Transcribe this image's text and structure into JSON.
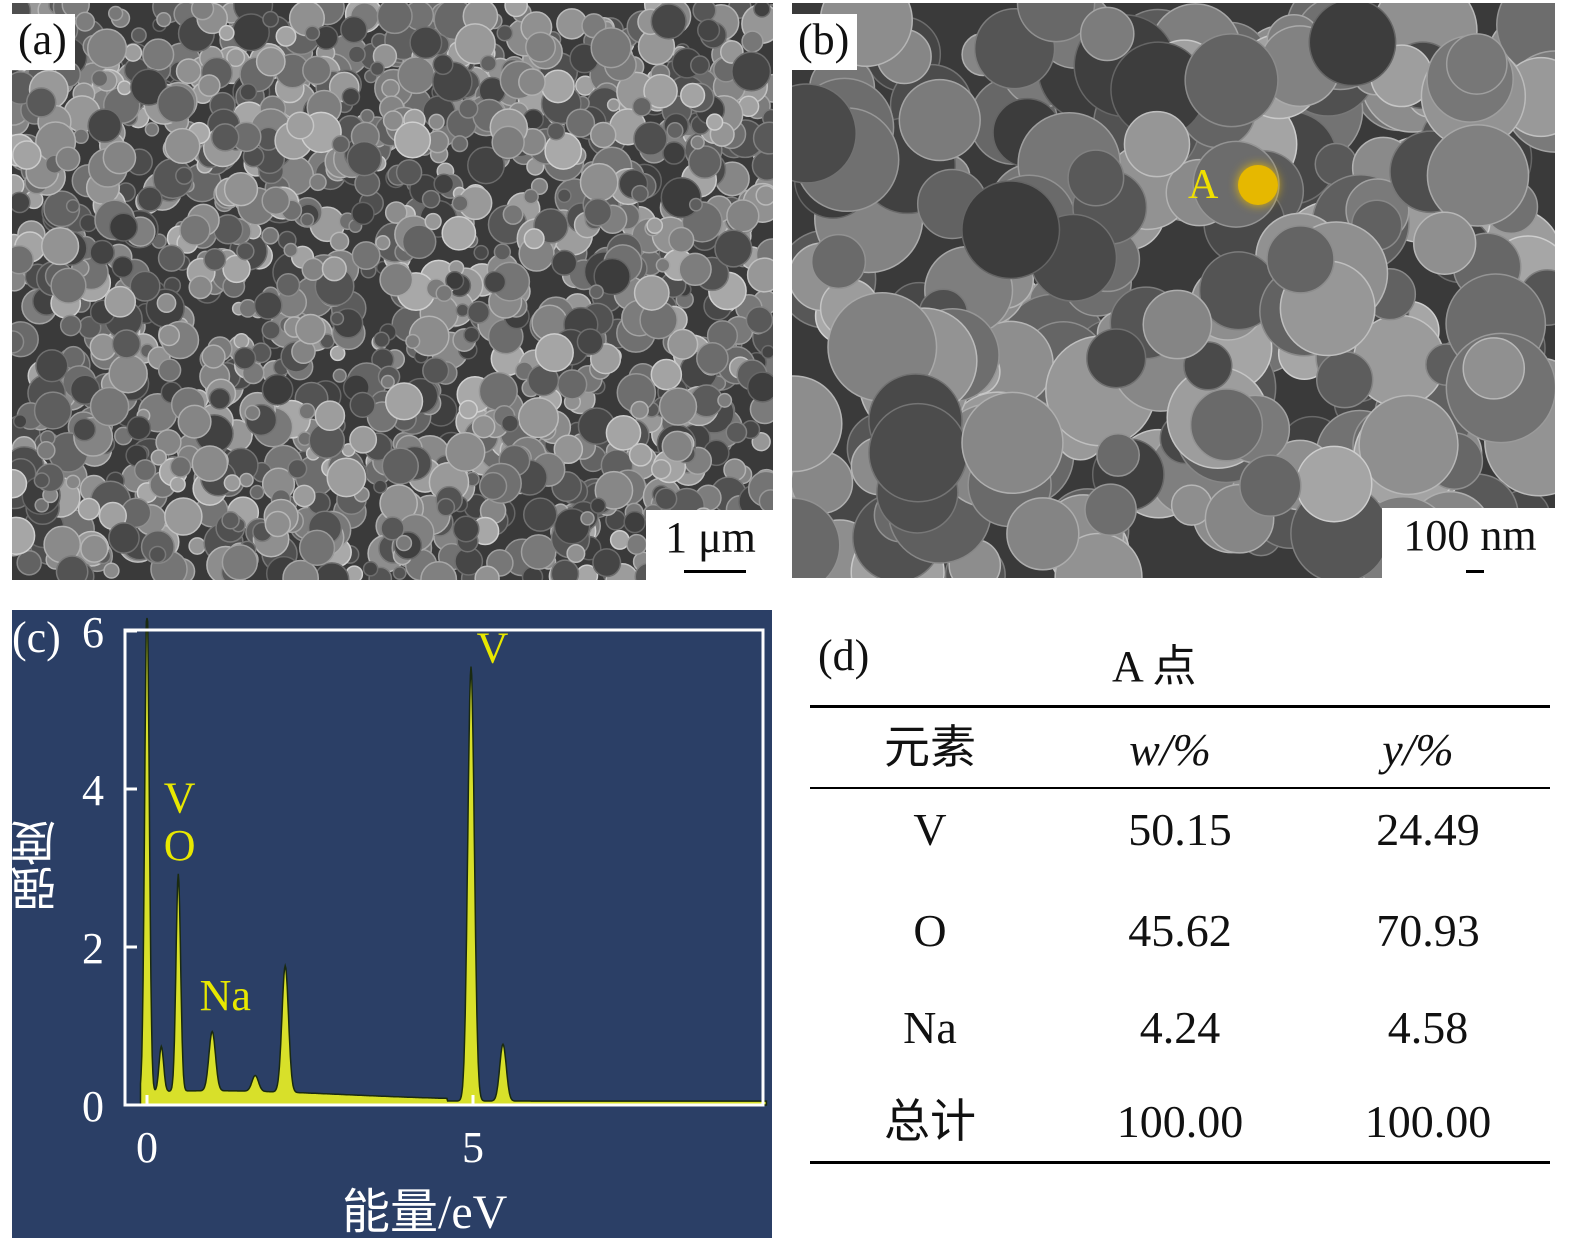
{
  "panel_a": {
    "label": "(a)",
    "scale_bar": "1 μm"
  },
  "panel_b": {
    "label": "(b)",
    "scale_bar": "100 nm",
    "point_label": "A",
    "point_color": "#e6b800"
  },
  "chart_data": {
    "type": "line",
    "panel_label": "(c)",
    "xlabel": "能量/eV",
    "ylabel": "强度",
    "xlim": [
      -0.3,
      9.5
    ],
    "ylim": [
      0,
      6
    ],
    "xticks": [
      "0",
      "5"
    ],
    "yticks": [
      "0",
      "2",
      "4",
      "6"
    ],
    "background": "#2b3f66",
    "line_color": "#d8e02a",
    "peaks": [
      {
        "x": 0.0,
        "y": 6.2
      },
      {
        "x": 0.22,
        "y": 0.57
      },
      {
        "x": 0.48,
        "y": 2.75
      },
      {
        "x": 1.0,
        "y": 0.75
      },
      {
        "x": 1.66,
        "y": 0.2
      },
      {
        "x": 2.12,
        "y": 1.6
      },
      {
        "x": 4.97,
        "y": 5.5
      },
      {
        "x": 5.46,
        "y": 0.72
      }
    ],
    "annotations": [
      {
        "text": "V",
        "x": 0.5,
        "y": 3.7
      },
      {
        "text": "O",
        "x": 0.5,
        "y": 3.1
      },
      {
        "text": "Na",
        "x": 1.2,
        "y": 1.2
      },
      {
        "text": "V",
        "x": 5.3,
        "y": 5.6
      }
    ]
  },
  "panel_d": {
    "label": "(d)",
    "title": "A 点",
    "headers": [
      "元素",
      "w/%",
      "y/%"
    ],
    "rows": [
      [
        "V",
        "50.15",
        "24.49"
      ],
      [
        "O",
        "45.62",
        "70.93"
      ],
      [
        "Na",
        "4.24",
        "4.58"
      ],
      [
        "总计",
        "100.00",
        "100.00"
      ]
    ]
  }
}
